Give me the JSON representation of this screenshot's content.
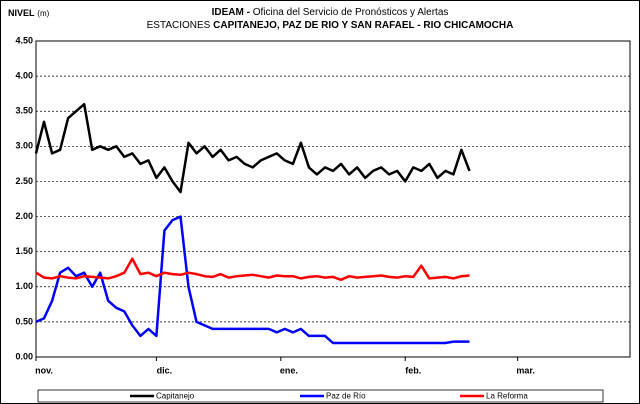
{
  "chart_data": {
    "type": "line",
    "title": [
      "IDEAM -",
      "Oficina del Servicio de Pronósticos y Alertas"
    ],
    "subtitle": [
      "ESTACIONES",
      "CAPITANEJO, PAZ DE RIO Y SAN RAFAEL -  RIO CHICAMOCHA"
    ],
    "y_label": [
      "NIVEL",
      "(m)"
    ],
    "x": [
      0,
      2,
      4,
      6,
      8,
      10,
      12,
      14,
      16,
      18,
      20,
      22,
      24,
      26,
      28,
      30,
      32,
      34,
      36,
      38,
      40,
      42,
      44,
      46,
      48,
      50,
      52,
      54,
      56,
      58,
      60,
      62,
      64,
      66,
      68,
      70,
      72,
      74,
      76,
      78,
      80,
      82,
      84,
      86,
      88,
      90,
      92,
      94,
      96,
      98,
      100,
      102,
      104,
      106,
      108
    ],
    "xlim": [
      0,
      148
    ],
    "xticks": [
      {
        "value": 0,
        "label": "nov."
      },
      {
        "value": 30,
        "label": "dic."
      },
      {
        "value": 61,
        "label": "ene."
      },
      {
        "value": 92,
        "label": "feb."
      },
      {
        "value": 120,
        "label": "mar."
      }
    ],
    "ylim": [
      0,
      4.5
    ],
    "yticks": [
      {
        "value": 0,
        "label": "0.00"
      },
      {
        "value": 0.5,
        "label": "0.50"
      },
      {
        "value": 1,
        "label": "1.00"
      },
      {
        "value": 1.5,
        "label": "1.50"
      },
      {
        "value": 2,
        "label": "2.00"
      },
      {
        "value": 2.5,
        "label": "2.50"
      },
      {
        "value": 3,
        "label": "3.00"
      },
      {
        "value": 3.5,
        "label": "3.50"
      },
      {
        "value": 4,
        "label": "4.00"
      },
      {
        "value": 4.5,
        "label": "4.50"
      }
    ],
    "grid": true,
    "legend": "bottom",
    "series": [
      {
        "name": "Capitanejo",
        "color": "#000000",
        "values": [
          2.9,
          3.35,
          2.9,
          2.95,
          3.4,
          3.5,
          3.6,
          2.95,
          3.0,
          2.95,
          3.0,
          2.85,
          2.9,
          2.75,
          2.8,
          2.55,
          2.7,
          2.5,
          2.35,
          3.05,
          2.9,
          3.0,
          2.85,
          2.95,
          2.8,
          2.85,
          2.75,
          2.7,
          2.8,
          2.85,
          2.9,
          2.8,
          2.75,
          3.05,
          2.7,
          2.6,
          2.7,
          2.65,
          2.75,
          2.6,
          2.7,
          2.55,
          2.65,
          2.7,
          2.6,
          2.65,
          2.5,
          2.7,
          2.65,
          2.75,
          2.55,
          2.65,
          2.6,
          2.95,
          2.65
        ]
      },
      {
        "name": "Paz de Río",
        "color": "#0000ff",
        "values": [
          0.5,
          0.55,
          0.8,
          1.2,
          1.27,
          1.15,
          1.2,
          1.0,
          1.2,
          0.8,
          0.7,
          0.65,
          0.45,
          0.3,
          0.4,
          0.3,
          1.8,
          1.95,
          2.0,
          1.0,
          0.5,
          0.45,
          0.4,
          0.4,
          0.4,
          0.4,
          0.4,
          0.4,
          0.4,
          0.4,
          0.35,
          0.4,
          0.35,
          0.4,
          0.3,
          0.3,
          0.3,
          0.2,
          0.2,
          0.2,
          0.2,
          0.2,
          0.2,
          0.2,
          0.2,
          0.2,
          0.2,
          0.2,
          0.2,
          0.2,
          0.2,
          0.2,
          0.22,
          0.22,
          0.22
        ]
      },
      {
        "name": "La Reforma",
        "color": "#ff0000",
        "values": [
          1.2,
          1.13,
          1.12,
          1.15,
          1.13,
          1.12,
          1.15,
          1.14,
          1.13,
          1.12,
          1.15,
          1.2,
          1.4,
          1.18,
          1.2,
          1.15,
          1.2,
          1.18,
          1.17,
          1.2,
          1.18,
          1.15,
          1.14,
          1.18,
          1.13,
          1.15,
          1.16,
          1.17,
          1.15,
          1.13,
          1.16,
          1.15,
          1.15,
          1.12,
          1.14,
          1.15,
          1.13,
          1.14,
          1.1,
          1.15,
          1.13,
          1.14,
          1.15,
          1.16,
          1.14,
          1.13,
          1.15,
          1.14,
          1.3,
          1.12,
          1.13,
          1.14,
          1.12,
          1.15,
          1.16
        ]
      }
    ]
  }
}
